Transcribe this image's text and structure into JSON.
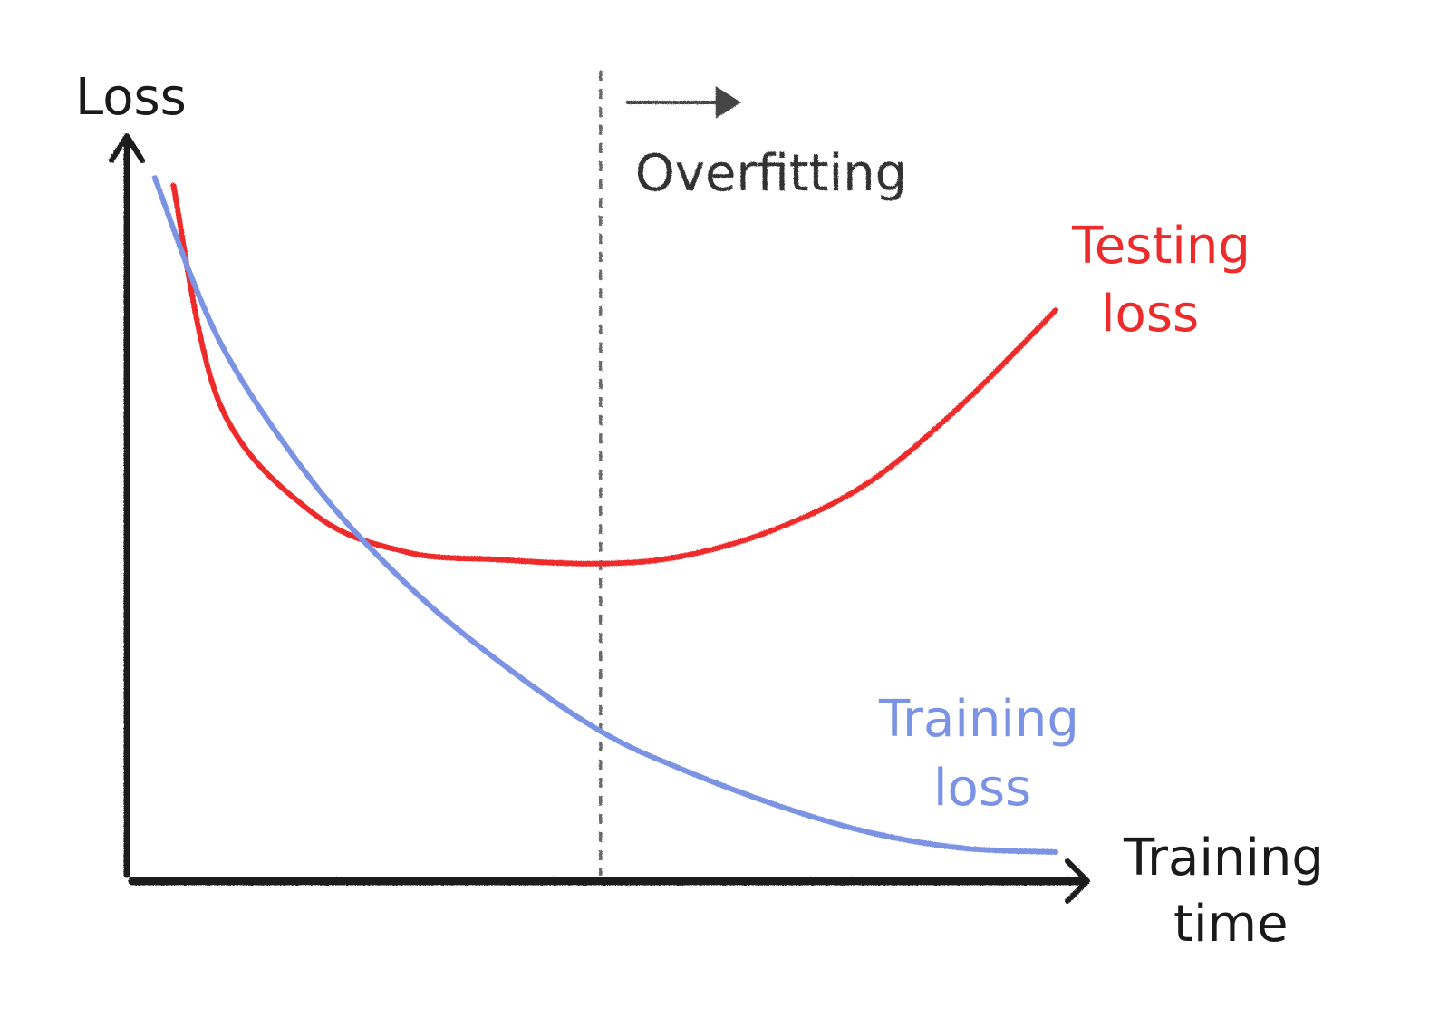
{
  "chart_data": {
    "type": "line",
    "title": "",
    "xlabel_lines": [
      "Training",
      "time"
    ],
    "ylabel": "Loss",
    "xlim": [
      0,
      100
    ],
    "ylim": [
      0,
      100
    ],
    "grid": false,
    "annotation": {
      "text": "Overfitting",
      "x": 51,
      "style": "dashed-vertical-line-with-right-arrow"
    },
    "series": [
      {
        "name_lines": [
          "Testing",
          "loss"
        ],
        "color": "#ee2b2b",
        "x": [
          5,
          10,
          20,
          30,
          40,
          51,
          60,
          70,
          80,
          90,
          100
        ],
        "y": [
          89,
          61,
          47,
          42,
          41,
          40.5,
          41.5,
          45,
          51,
          61,
          73
        ]
      },
      {
        "name_lines": [
          "Training",
          "loss"
        ],
        "color": "#7b93e4",
        "x": [
          3,
          10,
          20,
          30,
          40,
          51,
          60,
          70,
          80,
          90,
          100
        ],
        "y": [
          90,
          69,
          51,
          38,
          28,
          19,
          14,
          9.5,
          6,
          4,
          3.5
        ]
      }
    ]
  }
}
